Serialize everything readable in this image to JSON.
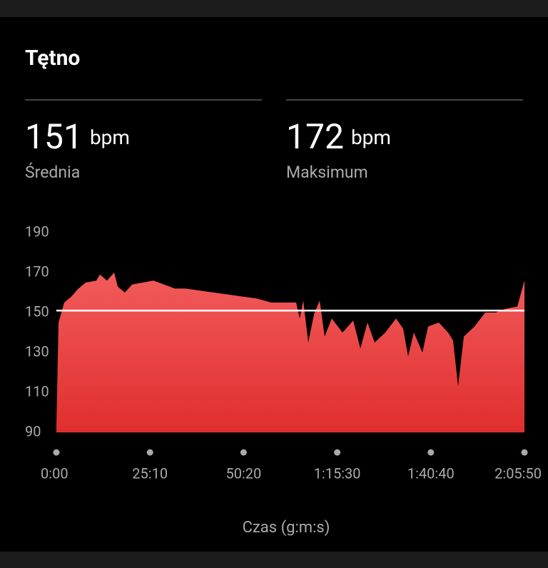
{
  "header": {
    "title": "Tętno"
  },
  "stats": [
    {
      "value": 151,
      "unit": "bpm",
      "label": "Średnia"
    },
    {
      "value": 172,
      "unit": "bpm",
      "label": "Maksimum"
    }
  ],
  "chart_data": {
    "type": "area",
    "x_label": "Czas (g:m:s)",
    "color_top": "#f25b5b",
    "color_bottom": "#e02e2e",
    "x": [
      0,
      35,
      127,
      242,
      357,
      472,
      645,
      702,
      817,
      932,
      990,
      1105,
      1220,
      1393,
      1565,
      1738,
      1911,
      2083,
      2313,
      2543,
      2774,
      3004,
      3234,
      3464,
      3694,
      3867,
      3925,
      3982,
      4063,
      4155,
      4247,
      4327,
      4442,
      4615,
      4788,
      4903,
      5018,
      5133,
      5306,
      5478,
      5593,
      5674,
      5766,
      5904,
      5996,
      6169,
      6318,
      6399,
      6480,
      6572,
      6744,
      6917,
      7089,
      7262,
      7435,
      7550
    ],
    "y": [
      93,
      145,
      155,
      158,
      162,
      165,
      166,
      169,
      166,
      170,
      163,
      160,
      164,
      165,
      166,
      164,
      162,
      162,
      161,
      160,
      159,
      158,
      157,
      155,
      155,
      155,
      147,
      156,
      135,
      149,
      156,
      138,
      147,
      140,
      146,
      132,
      145,
      135,
      140,
      147,
      142,
      128,
      140,
      130,
      143,
      145,
      140,
      136,
      113,
      138,
      143,
      150,
      150,
      152,
      153,
      166
    ],
    "xlim": [
      0,
      7550
    ],
    "xticks": [
      {
        "value": 0,
        "label": "0:00"
      },
      {
        "value": 1510,
        "label": "25:10"
      },
      {
        "value": 3020,
        "label": "50:20"
      },
      {
        "value": 4530,
        "label": "1:15:30"
      },
      {
        "value": 6040,
        "label": "1:40:40"
      },
      {
        "value": 7550,
        "label": "2:05:50"
      }
    ],
    "ylim": [
      90,
      190
    ],
    "yticks": [
      90,
      110,
      130,
      150,
      170,
      190
    ]
  }
}
